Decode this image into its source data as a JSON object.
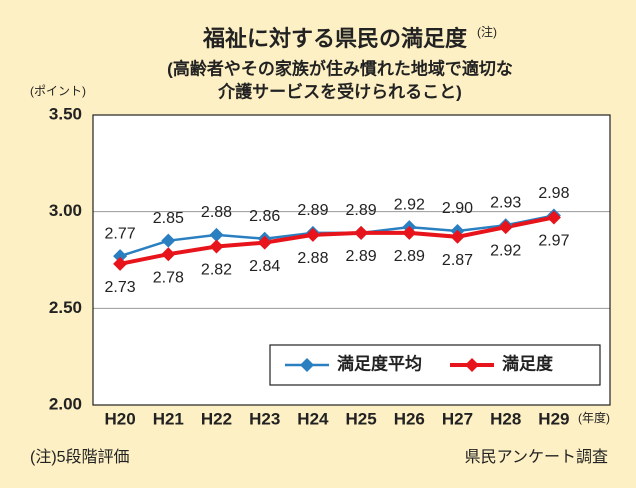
{
  "chart_data": {
    "type": "line",
    "title": "福祉に対する県民の満足度",
    "title_note": "(注)",
    "subtitle": [
      "(高齢者やその家族が住み慣れた地域で適切な",
      "介護サービスを受けられること)"
    ],
    "y_label": "(ポイント)",
    "x_label": "(年度)",
    "categories": [
      "H20",
      "H21",
      "H22",
      "H23",
      "H24",
      "H25",
      "H26",
      "H27",
      "H28",
      "H29"
    ],
    "series": [
      {
        "name": "満足度平均",
        "color": "#2a7fc1",
        "values": [
          2.77,
          2.85,
          2.88,
          2.86,
          2.89,
          2.89,
          2.92,
          2.9,
          2.93,
          2.98
        ],
        "value_labels": [
          "2.77",
          "2.85",
          "2.88",
          "2.86",
          "2.89",
          "2.89",
          "2.92",
          "2.90",
          "2.93",
          "2.98"
        ]
      },
      {
        "name": "満足度",
        "color": "#e8141c",
        "values": [
          2.73,
          2.78,
          2.82,
          2.84,
          2.88,
          2.89,
          2.89,
          2.87,
          2.92,
          2.97
        ],
        "value_labels": [
          "2.73",
          "2.78",
          "2.82",
          "2.84",
          "2.88",
          "2.89",
          "2.89",
          "2.87",
          "2.92",
          "2.97"
        ]
      }
    ],
    "ylim": [
      2,
      3.5
    ],
    "yticks": [
      {
        "value": 2,
        "label": "2.00"
      },
      {
        "value": 2.5,
        "label": "2.50"
      },
      {
        "value": 3,
        "label": "3.00"
      },
      {
        "value": 3.5,
        "label": "3.50"
      }
    ],
    "grid": true,
    "legend": "lower right",
    "footnotes": [
      "(注)5段階評価",
      "県民アンケート調査"
    ]
  }
}
